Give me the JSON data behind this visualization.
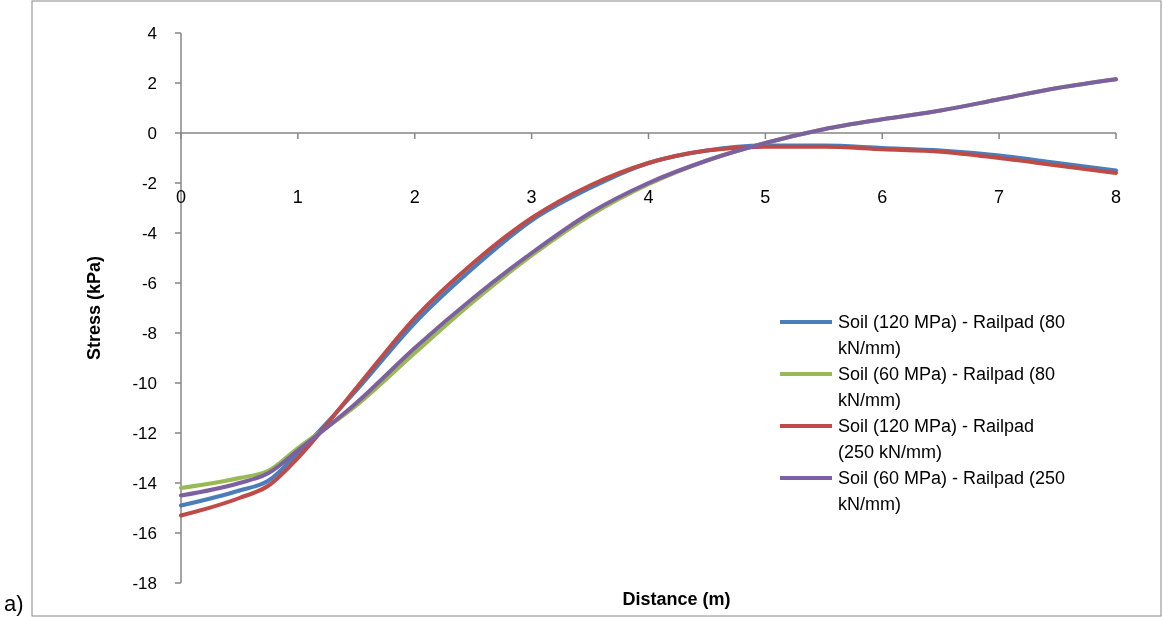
{
  "chart_data": {
    "type": "line",
    "xlabel": "Distance (m)",
    "ylabel": "Stress (kPa)",
    "annotations": [
      "a)"
    ],
    "x": [
      0,
      0.5,
      0.75,
      1,
      1.5,
      2,
      2.5,
      3,
      3.5,
      4,
      4.5,
      5,
      5.5,
      6,
      6.5,
      7,
      7.5,
      8
    ],
    "series": [
      {
        "name": "Soil (120 MPa) - Railpad (80 kN/mm)",
        "color": "#4a7ebb",
        "values": [
          -14.9,
          -14.3,
          -13.9,
          -12.8,
          -10.3,
          -7.6,
          -5.4,
          -3.5,
          -2.2,
          -1.2,
          -0.7,
          -0.5,
          -0.5,
          -0.6,
          -0.7,
          -0.9,
          -1.2,
          -1.5
        ]
      },
      {
        "name": "Soil (60 MPa) -  Railpad (80 kN/mm)",
        "color": "#98b954",
        "values": [
          -14.2,
          -13.8,
          -13.5,
          -12.6,
          -10.9,
          -8.8,
          -6.75,
          -4.9,
          -3.3,
          -2.05,
          -1.1,
          -0.4,
          0.15,
          0.55,
          0.9,
          1.35,
          1.8,
          2.15
        ]
      },
      {
        "name": "Soil (120 MPa) - Railpad (250 kN/mm)",
        "color": "#be4b48",
        "values": [
          -15.3,
          -14.6,
          -14.1,
          -13.0,
          -10.2,
          -7.4,
          -5.2,
          -3.4,
          -2.1,
          -1.2,
          -0.7,
          -0.55,
          -0.55,
          -0.65,
          -0.75,
          -1.0,
          -1.3,
          -1.6
        ]
      },
      {
        "name": "Soil (60 MPa) - Railpad (250 kN/mm)",
        "color": "#7d60a0",
        "values": [
          -14.5,
          -14.0,
          -13.6,
          -12.7,
          -10.8,
          -8.6,
          -6.6,
          -4.8,
          -3.2,
          -2.0,
          -1.1,
          -0.4,
          0.15,
          0.55,
          0.9,
          1.35,
          1.8,
          2.15
        ]
      }
    ],
    "xlim": [
      0,
      8
    ],
    "xticks": [
      0,
      1,
      2,
      3,
      4,
      5,
      6,
      7,
      8
    ],
    "ylim": [
      -18,
      4
    ],
    "yticks": [
      -18,
      -16,
      -14,
      -12,
      -10,
      -8,
      -6,
      -4,
      -2,
      0,
      2,
      4
    ],
    "legend": "right",
    "marker": "none",
    "line_style": "solid"
  }
}
